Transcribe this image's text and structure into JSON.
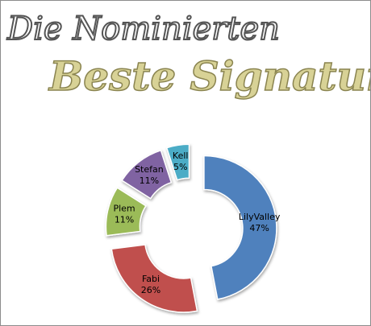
{
  "chart_data": {
    "type": "doughnut",
    "title": "Die Nominierten",
    "subtitle": "Beste Signatur",
    "categories": [
      "LilyValley",
      "Fabi",
      "Plem",
      "Stefan",
      "Kell"
    ],
    "values": [
      47,
      26,
      11,
      11,
      5
    ],
    "value_labels": [
      "47%",
      "26%",
      "11%",
      "11%",
      "5%"
    ],
    "colors": [
      "#4f81bd",
      "#c0504d",
      "#9bbb59",
      "#8064a2",
      "#4bacc6"
    ]
  }
}
